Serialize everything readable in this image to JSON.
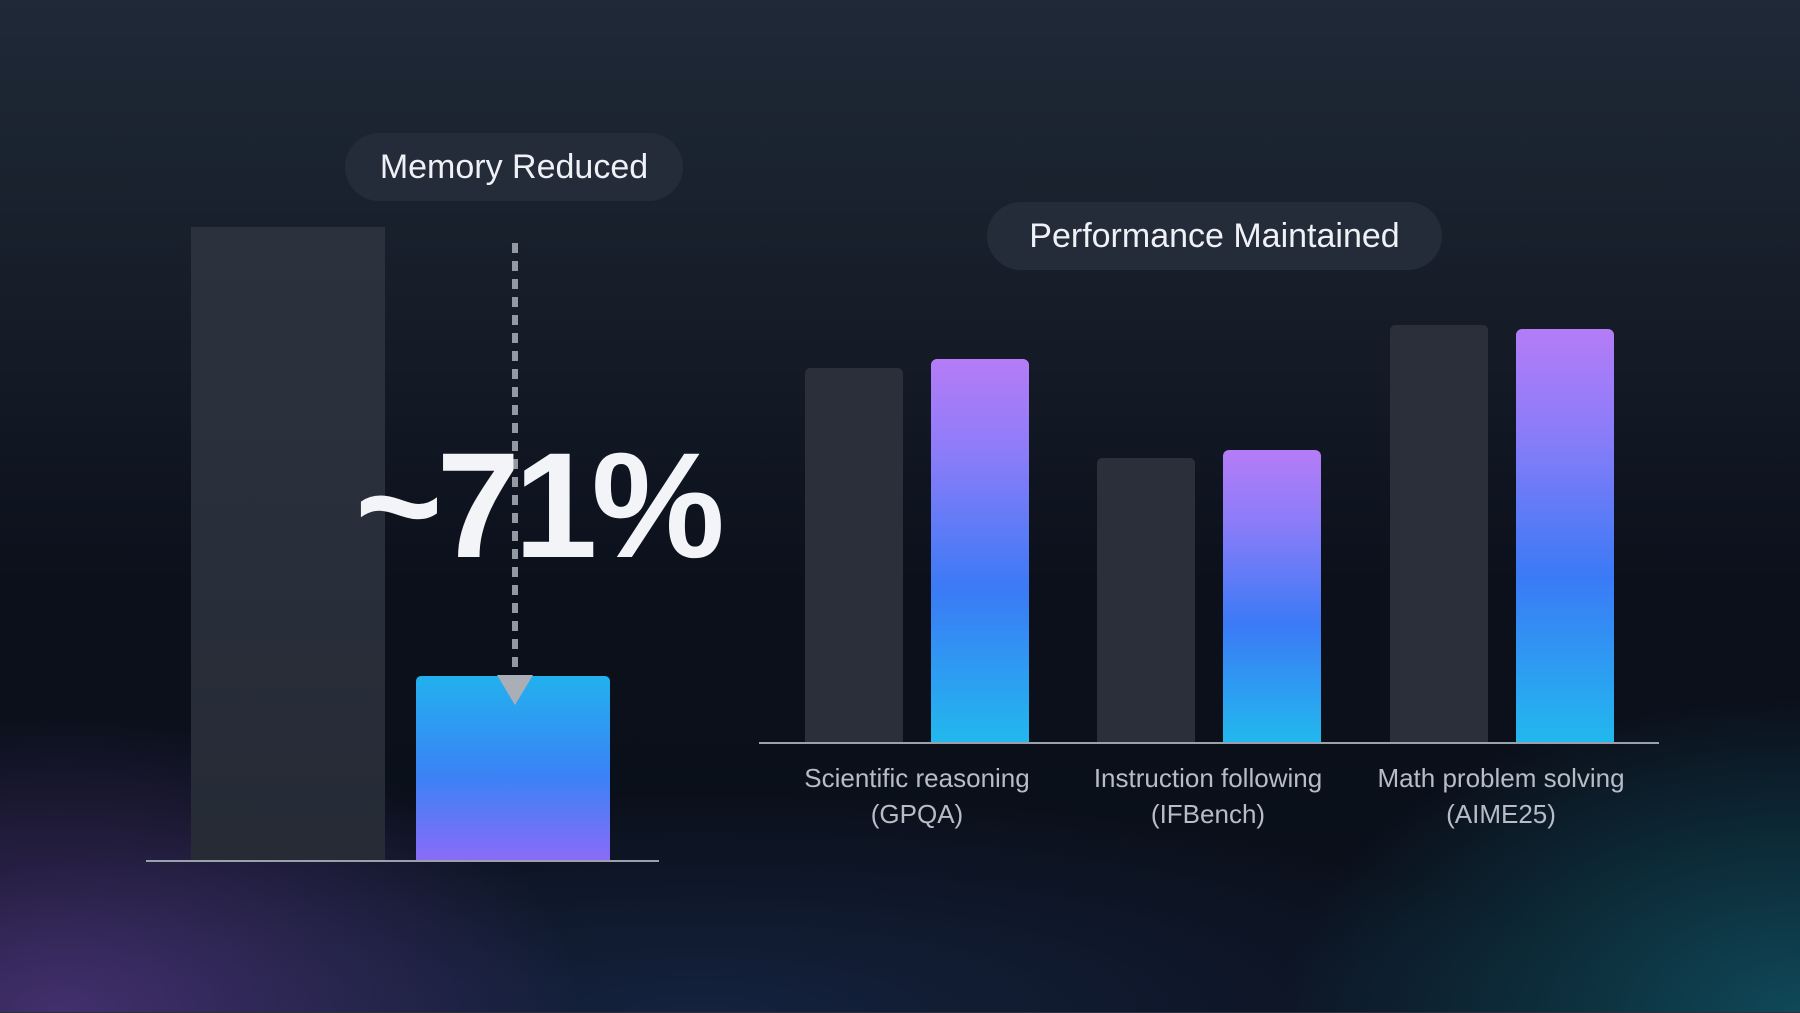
{
  "memory_panel": {
    "title": "Memory Reduced",
    "reduction_label": "~71%"
  },
  "performance_panel": {
    "title": "Performance Maintained"
  },
  "colors": {
    "baseline_bar": "#2a2f3a",
    "gradient_top": "#b57cf7",
    "gradient_mid": "#3b7af6",
    "gradient_bottom": "#22b8ee"
  },
  "chart_data": [
    {
      "type": "bar",
      "title": "Memory Reduced",
      "categories": [
        "",
        ""
      ],
      "values": [
        100,
        29
      ],
      "annotation": "~71%"
    },
    {
      "type": "bar",
      "title": "Performance Maintained",
      "categories": [
        [
          "Scientific reasoning",
          "(GPQA)"
        ],
        [
          "Instruction following",
          "(IFBench)"
        ],
        [
          "Math problem solving",
          "(AIME25)"
        ]
      ],
      "series": [
        {
          "values": [
            87,
            66,
            97
          ]
        },
        {
          "values": [
            89,
            68,
            96
          ]
        }
      ]
    }
  ]
}
